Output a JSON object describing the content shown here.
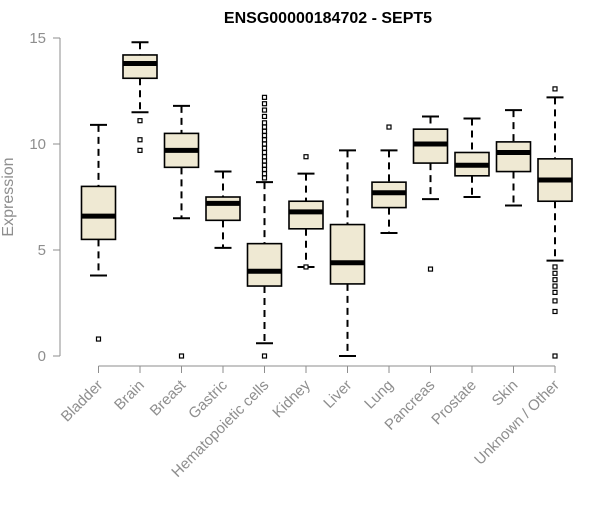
{
  "chart_data": {
    "type": "boxplot",
    "title": "ENSG00000184702 - SEPT5",
    "xlabel": "",
    "ylabel": "Expression",
    "ylim": [
      0,
      15
    ],
    "yticks": [
      0,
      5,
      10,
      15
    ],
    "grid": false,
    "colors": {
      "box_fill": "#efe9d3",
      "box_stroke": "#000000",
      "axis": "#8e8e8e",
      "title": "#000000"
    },
    "categories": [
      "Bladder",
      "Brain",
      "Breast",
      "Gastric",
      "Hematopoietic cells",
      "Kidney",
      "Liver",
      "Lung",
      "Pancreas",
      "Prostate",
      "Skin",
      "Unknown / Other"
    ],
    "boxes": [
      {
        "category": "Bladder",
        "whisker_low": 3.8,
        "q1": 5.5,
        "median": 6.6,
        "q3": 8.0,
        "whisker_high": 10.9,
        "outliers": [
          0.8
        ]
      },
      {
        "category": "Brain",
        "whisker_low": 11.5,
        "q1": 13.1,
        "median": 13.8,
        "q3": 14.2,
        "whisker_high": 14.8,
        "outliers": [
          11.1,
          10.2,
          9.7
        ]
      },
      {
        "category": "Breast",
        "whisker_low": 6.5,
        "q1": 8.9,
        "median": 9.7,
        "q3": 10.5,
        "whisker_high": 11.8,
        "outliers": [
          0.0
        ]
      },
      {
        "category": "Gastric",
        "whisker_low": 5.1,
        "q1": 6.4,
        "median": 7.2,
        "q3": 7.5,
        "whisker_high": 8.7,
        "outliers": []
      },
      {
        "category": "Hematopoietic cells",
        "whisker_low": 0.6,
        "q1": 3.3,
        "median": 4.0,
        "q3": 5.3,
        "whisker_high": 8.2,
        "outliers": [
          0.0,
          8.4,
          8.6,
          8.8,
          9.0,
          9.2,
          9.4,
          9.6,
          9.8,
          10.0,
          10.2,
          10.4,
          10.6,
          10.8,
          11.0,
          11.3,
          11.6,
          11.9,
          12.2
        ]
      },
      {
        "category": "Kidney",
        "whisker_low": 4.2,
        "q1": 6.0,
        "median": 6.8,
        "q3": 7.3,
        "whisker_high": 8.6,
        "outliers": [
          9.4,
          4.2
        ]
      },
      {
        "category": "Liver",
        "whisker_low": 0.0,
        "q1": 3.4,
        "median": 4.4,
        "q3": 6.2,
        "whisker_high": 9.7,
        "outliers": []
      },
      {
        "category": "Lung",
        "whisker_low": 5.8,
        "q1": 7.0,
        "median": 7.7,
        "q3": 8.2,
        "whisker_high": 9.7,
        "outliers": [
          10.8
        ]
      },
      {
        "category": "Pancreas",
        "whisker_low": 7.4,
        "q1": 9.1,
        "median": 10.0,
        "q3": 10.7,
        "whisker_high": 11.3,
        "outliers": [
          4.1
        ]
      },
      {
        "category": "Prostate",
        "whisker_low": 7.5,
        "q1": 8.5,
        "median": 9.0,
        "q3": 9.6,
        "whisker_high": 11.2,
        "outliers": []
      },
      {
        "category": "Skin",
        "whisker_low": 7.1,
        "q1": 8.7,
        "median": 9.6,
        "q3": 10.1,
        "whisker_high": 11.6,
        "outliers": []
      },
      {
        "category": "Unknown / Other",
        "whisker_low": 4.5,
        "q1": 7.3,
        "median": 8.3,
        "q3": 9.3,
        "whisker_high": 12.2,
        "outliers": [
          12.6,
          4.2,
          3.9,
          3.6,
          3.3,
          3.0,
          2.6,
          2.1,
          0.0
        ]
      }
    ]
  }
}
